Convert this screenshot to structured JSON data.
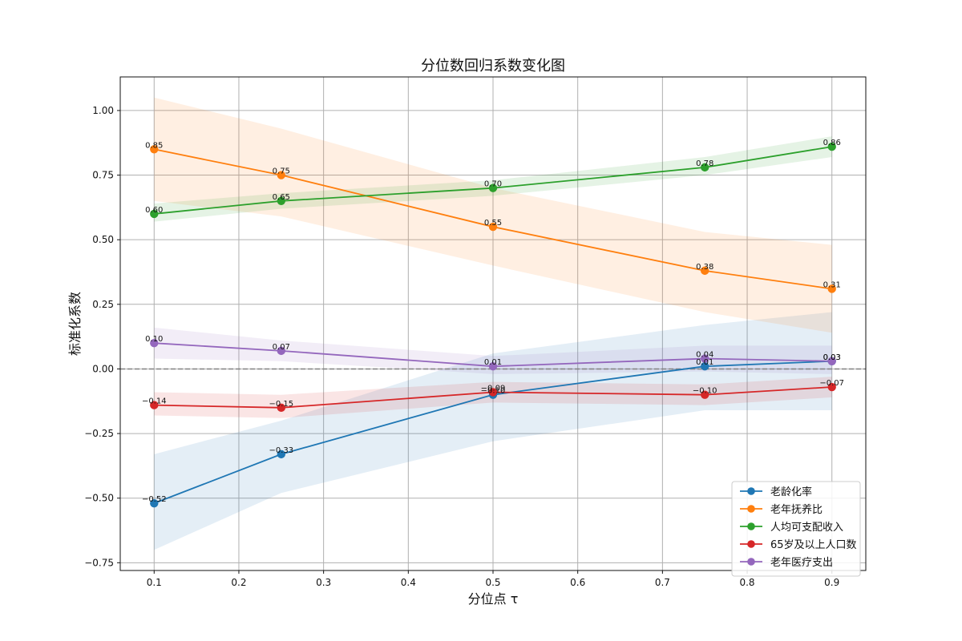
{
  "chart_data": {
    "type": "line",
    "title": "分位数回归系数变化图",
    "xlabel": "分位点 τ",
    "ylabel": "标准化系数",
    "x": [
      0.1,
      0.25,
      0.5,
      0.75,
      0.9
    ],
    "xlim": [
      0.06,
      0.94
    ],
    "ylim": [
      -0.78,
      1.13
    ],
    "xticks": [
      0.1,
      0.2,
      0.3,
      0.4,
      0.5,
      0.6,
      0.7,
      0.8,
      0.9
    ],
    "yticks": [
      -0.75,
      -0.5,
      -0.25,
      0.0,
      0.25,
      0.5,
      0.75,
      1.0
    ],
    "xtick_labels": [
      "0.1",
      "0.2",
      "0.3",
      "0.4",
      "0.5",
      "0.6",
      "0.7",
      "0.8",
      "0.9"
    ],
    "ytick_labels": [
      "−0.75",
      "−0.50",
      "−0.25",
      "0.00",
      "0.25",
      "0.50",
      "0.75",
      "1.00"
    ],
    "grid": true,
    "legend_position": "lower-right",
    "zero_line": true,
    "series": [
      {
        "name": "老龄化率",
        "color": "#1f77b4",
        "values": [
          -0.52,
          -0.33,
          -0.1,
          0.01,
          0.03
        ],
        "labels": [
          "−0.52",
          "−0.33",
          "−0.10",
          "0.01",
          "0.03"
        ],
        "lower": [
          -0.7,
          -0.48,
          -0.28,
          -0.16,
          -0.16
        ],
        "upper": [
          -0.33,
          -0.2,
          0.06,
          0.17,
          0.22
        ]
      },
      {
        "name": "老年抚养比",
        "color": "#ff7f0e",
        "values": [
          0.85,
          0.75,
          0.55,
          0.38,
          0.31
        ],
        "labels": [
          "0.85",
          "0.75",
          "0.55",
          "0.38",
          "0.31"
        ],
        "lower": [
          0.65,
          0.59,
          0.4,
          0.22,
          0.14
        ],
        "upper": [
          1.05,
          0.93,
          0.7,
          0.53,
          0.48
        ]
      },
      {
        "name": "人均可支配收入",
        "color": "#2ca02c",
        "values": [
          0.6,
          0.65,
          0.7,
          0.78,
          0.86
        ],
        "labels": [
          "0.60",
          "0.65",
          "0.70",
          "0.78",
          "0.86"
        ],
        "lower": [
          0.57,
          0.62,
          0.67,
          0.75,
          0.82
        ],
        "upper": [
          0.64,
          0.68,
          0.73,
          0.82,
          0.9
        ]
      },
      {
        "name": "65岁及以上人口数",
        "color": "#d62728",
        "values": [
          -0.14,
          -0.15,
          -0.09,
          -0.1,
          -0.07
        ],
        "labels": [
          "−0.14",
          "−0.15",
          "−0.09",
          "−0.10",
          "−0.07"
        ],
        "lower": [
          -0.18,
          -0.19,
          -0.13,
          -0.14,
          -0.11
        ],
        "upper": [
          -0.09,
          -0.1,
          -0.05,
          -0.06,
          -0.03
        ]
      },
      {
        "name": "老年医疗支出",
        "color": "#9467bd",
        "values": [
          0.1,
          0.07,
          0.01,
          0.04,
          0.03
        ],
        "labels": [
          "0.10",
          "0.07",
          "0.01",
          "0.04",
          "0.03"
        ],
        "lower": [
          0.04,
          0.03,
          -0.02,
          -0.01,
          -0.02
        ],
        "upper": [
          0.16,
          0.11,
          0.05,
          0.09,
          0.09
        ]
      }
    ]
  }
}
